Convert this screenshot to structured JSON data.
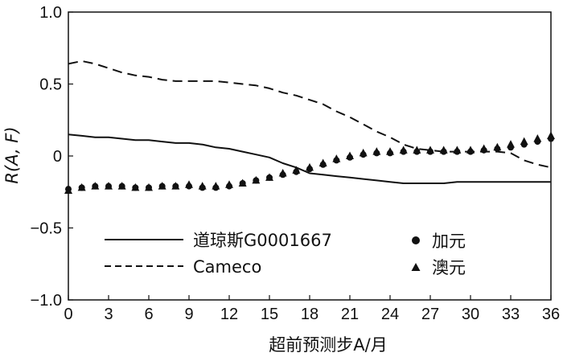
{
  "chart_data": {
    "type": "line",
    "xlabel": "超前预测步A/月",
    "ylabel": "R(A, F)",
    "xlim": [
      0,
      36
    ],
    "ylim": [
      -1.0,
      1.0
    ],
    "x_ticks": [
      "0",
      "3",
      "6",
      "9",
      "12",
      "15",
      "18",
      "21",
      "24",
      "27",
      "30",
      "33",
      "36"
    ],
    "y_ticks": [
      "1.0",
      "0.5",
      "0",
      "−0.5",
      "−1.0"
    ],
    "grid": false,
    "legend_placement": "bottom",
    "series": [
      {
        "name": "道琼斯G0001667",
        "style": "solid",
        "x": [
          0,
          1,
          2,
          3,
          4,
          5,
          6,
          7,
          8,
          9,
          10,
          11,
          12,
          13,
          14,
          15,
          16,
          17,
          18,
          19,
          20,
          21,
          22,
          23,
          24,
          25,
          26,
          27,
          28,
          29,
          30,
          31,
          32,
          33,
          34,
          35,
          36
        ],
        "values": [
          0.15,
          0.14,
          0.13,
          0.13,
          0.12,
          0.11,
          0.11,
          0.1,
          0.09,
          0.09,
          0.08,
          0.06,
          0.05,
          0.03,
          0.01,
          -0.01,
          -0.05,
          -0.08,
          -0.12,
          -0.13,
          -0.14,
          -0.15,
          -0.16,
          -0.17,
          -0.18,
          -0.19,
          -0.19,
          -0.19,
          -0.19,
          -0.18,
          -0.18,
          -0.18,
          -0.18,
          -0.18,
          -0.18,
          -0.18,
          -0.18
        ]
      },
      {
        "name": "Cameco",
        "style": "dashed",
        "x": [
          0,
          1,
          2,
          3,
          4,
          5,
          6,
          7,
          8,
          9,
          10,
          11,
          12,
          13,
          14,
          15,
          16,
          17,
          18,
          19,
          20,
          21,
          22,
          23,
          24,
          25,
          26,
          27,
          28,
          29,
          30,
          31,
          32,
          33,
          34,
          35,
          36
        ],
        "values": [
          0.64,
          0.66,
          0.64,
          0.61,
          0.58,
          0.56,
          0.55,
          0.53,
          0.52,
          0.52,
          0.52,
          0.52,
          0.51,
          0.5,
          0.49,
          0.47,
          0.44,
          0.42,
          0.39,
          0.36,
          0.31,
          0.27,
          0.22,
          0.17,
          0.13,
          0.08,
          0.05,
          0.04,
          0.03,
          0.03,
          0.03,
          0.03,
          0.03,
          0.02,
          -0.03,
          -0.06,
          -0.08
        ]
      },
      {
        "name": "加元",
        "style": "circle-markers",
        "x": [
          0,
          1,
          2,
          3,
          4,
          5,
          6,
          7,
          8,
          9,
          10,
          11,
          12,
          13,
          14,
          15,
          16,
          17,
          18,
          19,
          20,
          21,
          22,
          23,
          24,
          25,
          26,
          27,
          28,
          29,
          30,
          31,
          32,
          33,
          34,
          35,
          36
        ],
        "values": [
          -0.23,
          -0.22,
          -0.21,
          -0.21,
          -0.21,
          -0.22,
          -0.22,
          -0.21,
          -0.21,
          -0.21,
          -0.22,
          -0.22,
          -0.21,
          -0.19,
          -0.17,
          -0.15,
          -0.13,
          -0.11,
          -0.09,
          -0.06,
          -0.03,
          -0.01,
          0.01,
          0.02,
          0.02,
          0.03,
          0.03,
          0.03,
          0.03,
          0.03,
          0.03,
          0.04,
          0.05,
          0.06,
          0.08,
          0.1,
          0.12
        ]
      },
      {
        "name": "澳元",
        "style": "triangle-markers",
        "x": [
          0,
          1,
          2,
          3,
          4,
          5,
          6,
          7,
          8,
          9,
          10,
          11,
          12,
          13,
          14,
          15,
          16,
          17,
          18,
          19,
          20,
          21,
          22,
          23,
          24,
          25,
          26,
          27,
          28,
          29,
          30,
          31,
          32,
          33,
          34,
          35,
          36
        ],
        "values": [
          -0.24,
          -0.22,
          -0.21,
          -0.21,
          -0.21,
          -0.22,
          -0.22,
          -0.21,
          -0.21,
          -0.2,
          -0.21,
          -0.21,
          -0.2,
          -0.19,
          -0.17,
          -0.15,
          -0.12,
          -0.1,
          -0.08,
          -0.05,
          -0.02,
          0.0,
          0.02,
          0.03,
          0.03,
          0.04,
          0.04,
          0.04,
          0.04,
          0.04,
          0.04,
          0.05,
          0.06,
          0.08,
          0.1,
          0.12,
          0.14
        ]
      }
    ]
  }
}
